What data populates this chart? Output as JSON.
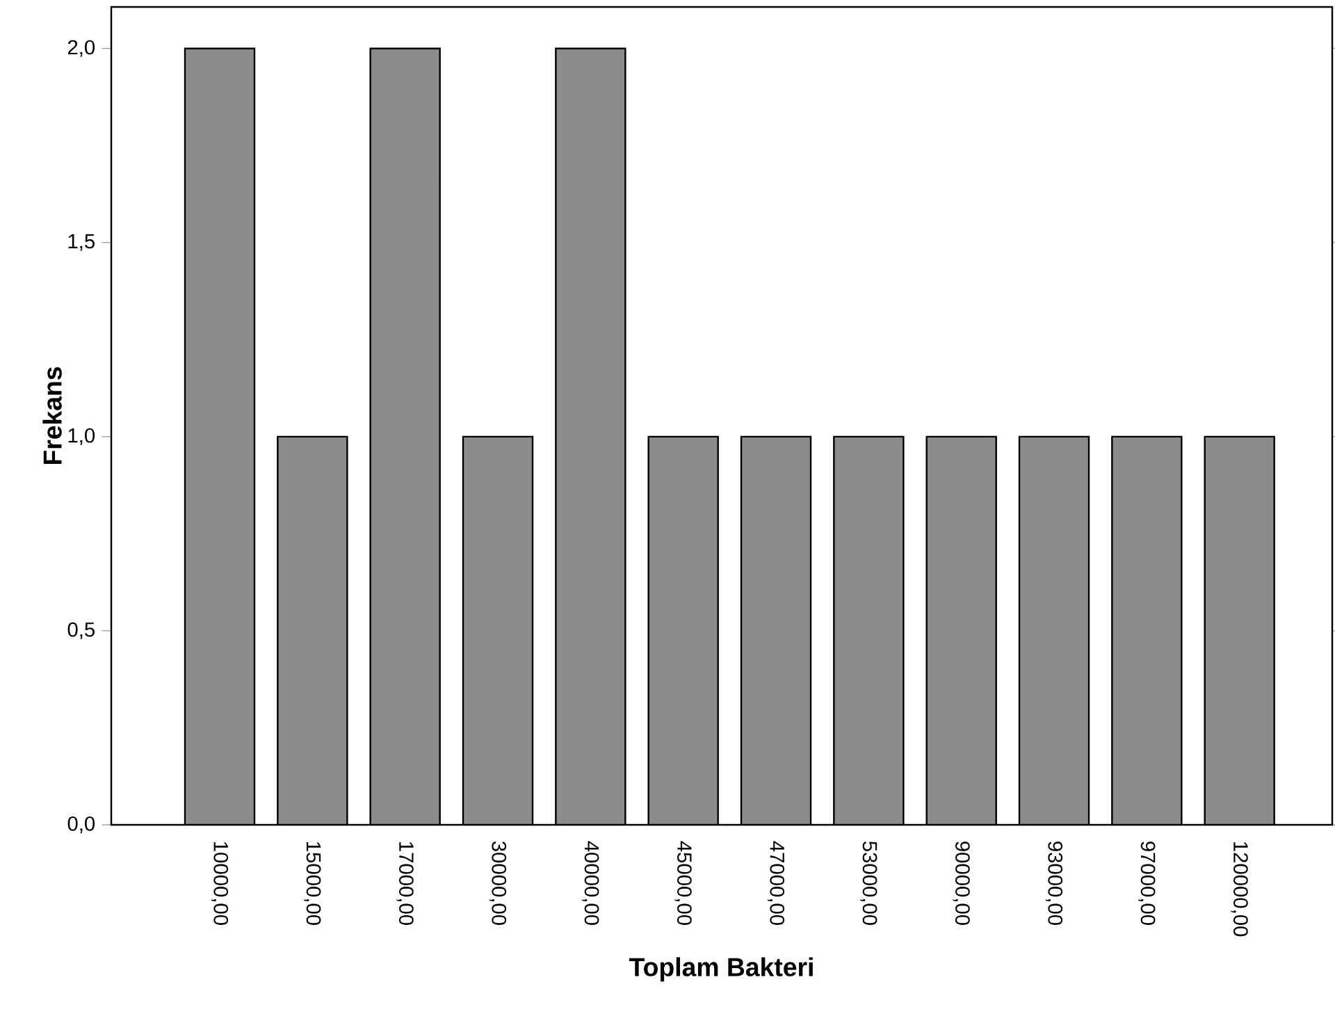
{
  "chart_data": {
    "type": "bar",
    "xlabel": "Toplam Bakteri",
    "ylabel": "Frekans",
    "categories": [
      "10000,00",
      "15000,00",
      "17000,00",
      "30000,00",
      "40000,00",
      "45000,00",
      "47000,00",
      "53000,00",
      "90000,00",
      "93000,00",
      "97000,00",
      "120000,00"
    ],
    "values": [
      2,
      1,
      2,
      1,
      2,
      1,
      1,
      1,
      1,
      1,
      1,
      1
    ],
    "color": "#8c8c8c",
    "ylim": [
      0,
      2.107
    ],
    "yticks": [
      {
        "value": 0,
        "label": "0,0"
      },
      {
        "value": 0.5,
        "label": "0,5"
      },
      {
        "value": 1,
        "label": "1,0"
      },
      {
        "value": 1.5,
        "label": "1,5"
      },
      {
        "value": 2,
        "label": "2,0"
      }
    ]
  }
}
